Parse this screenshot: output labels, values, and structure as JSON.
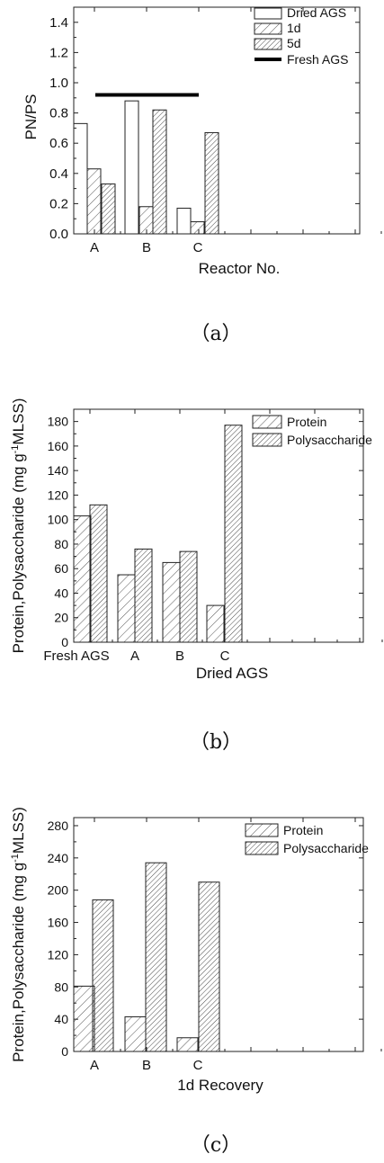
{
  "chart_data": [
    {
      "type": "bar",
      "panel_label": "（a）",
      "xlabel": "Reactor No.",
      "ylabel": "PN/PS",
      "ylim": [
        0,
        1.5
      ],
      "yticks": [
        "0.0",
        "0.2",
        "0.4",
        "0.6",
        "0.8",
        "1.0",
        "1.2",
        "1.4"
      ],
      "categories": [
        "A",
        "B",
        "C"
      ],
      "series": [
        {
          "name": "Dried AGS",
          "values": [
            0.73,
            0.88,
            0.17
          ]
        },
        {
          "name": "1d",
          "values": [
            0.43,
            0.18,
            0.08
          ]
        },
        {
          "name": "5d",
          "values": [
            0.33,
            0.82,
            0.67
          ]
        }
      ],
      "reference_line": {
        "name": "Fresh AGS",
        "value": 0.92
      },
      "legend": "top-right"
    },
    {
      "type": "bar",
      "panel_label": "（b）",
      "xlabel": "Dried AGS",
      "ylabel": "Protein,Polysaccharide (mg g",
      "ylabel_sup": "-1",
      "ylabel_tail": "MLSS)",
      "ylim": [
        0,
        190
      ],
      "yticks": [
        "0",
        "20",
        "40",
        "60",
        "80",
        "100",
        "120",
        "140",
        "160",
        "180"
      ],
      "categories": [
        "Fresh AGS",
        "A",
        "B",
        "C"
      ],
      "series": [
        {
          "name": "Protein",
          "values": [
            103,
            55,
            65,
            30
          ]
        },
        {
          "name": "Polysaccharide",
          "values": [
            112,
            76,
            74,
            177
          ]
        }
      ],
      "legend": "top-right"
    },
    {
      "type": "bar",
      "panel_label": "（c）",
      "xlabel": "1d Recovery",
      "ylabel": "Protein,Polysaccharide (mg g",
      "ylabel_sup": "-1",
      "ylabel_tail": "MLSS)",
      "ylim": [
        0,
        290
      ],
      "yticks": [
        "0",
        "40",
        "80",
        "120",
        "160",
        "200",
        "240",
        "280"
      ],
      "categories": [
        "A",
        "B",
        "C"
      ],
      "series": [
        {
          "name": "Protein",
          "values": [
            81,
            43,
            17
          ]
        },
        {
          "name": "Polysaccharide",
          "values": [
            188,
            234,
            210
          ]
        }
      ],
      "legend": "top-right"
    }
  ]
}
